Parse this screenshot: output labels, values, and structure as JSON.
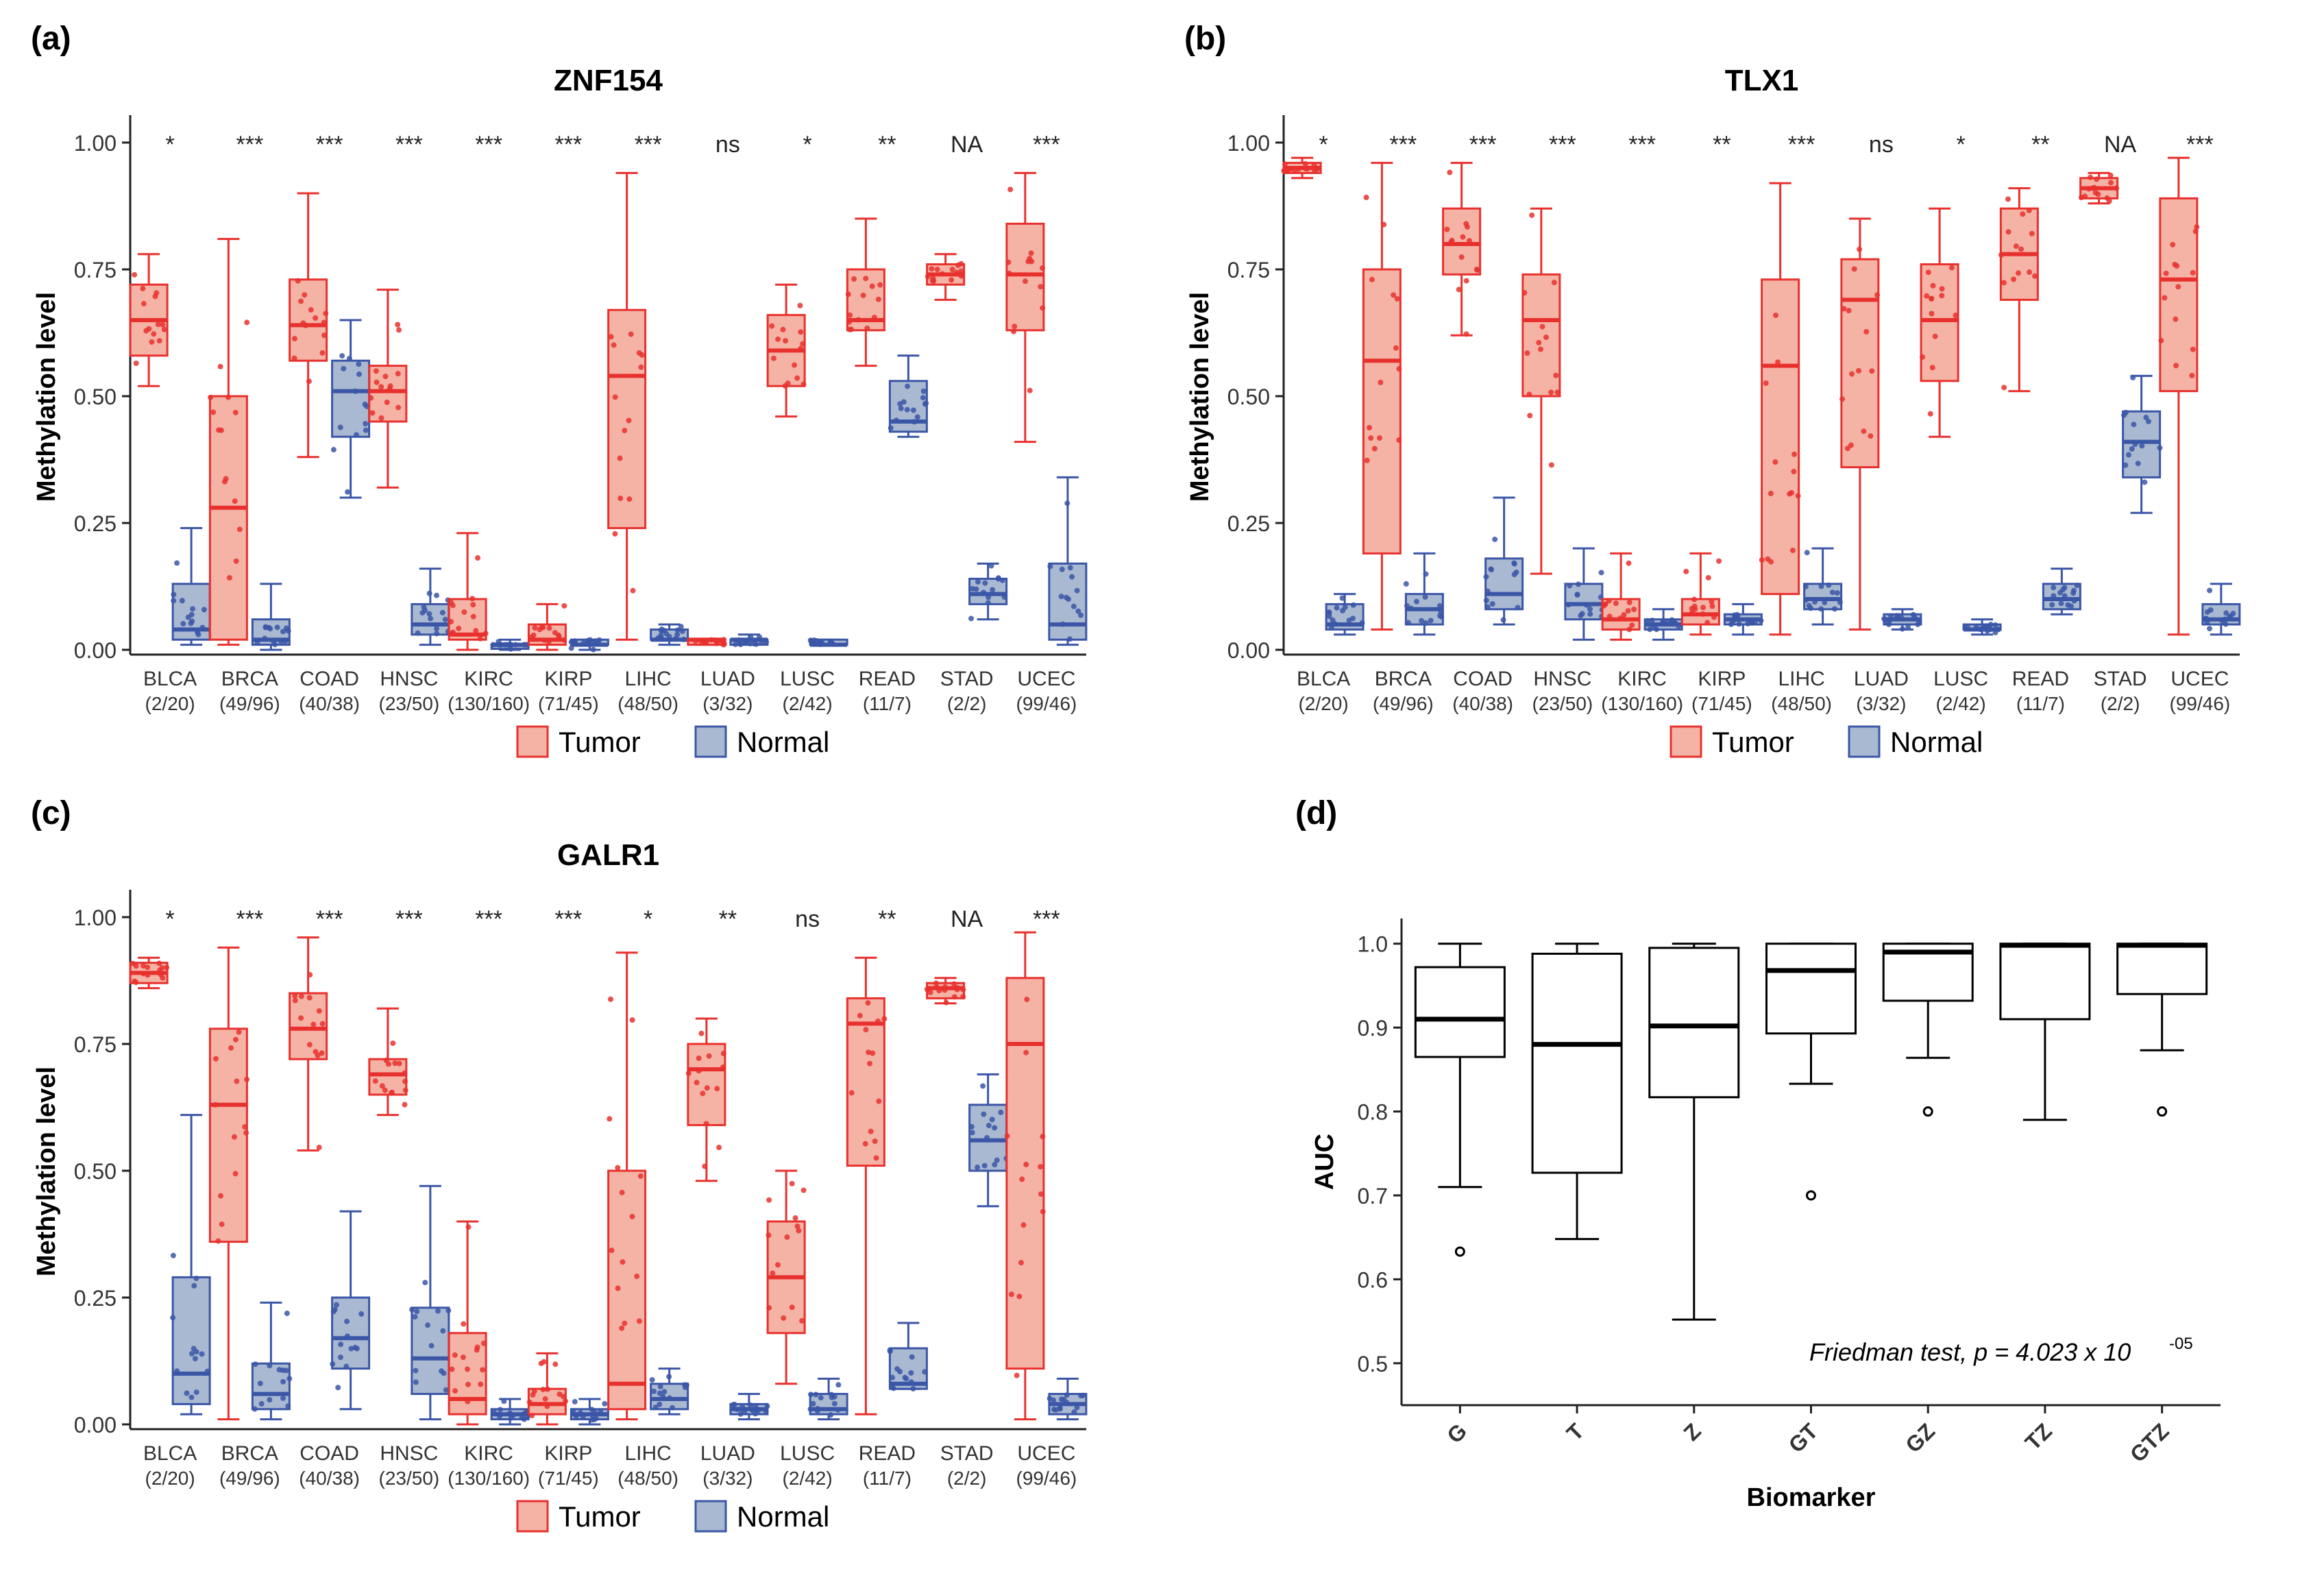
{
  "colors": {
    "tumor": "#e8312e",
    "tumor_fill": "#f5b3a6",
    "normal": "#3b56a7",
    "normal_fill": "#a9b9d1",
    "axis": "#222222"
  },
  "chart_data": [
    {
      "panel": "(a)",
      "title": "ZNF154",
      "type": "boxplot",
      "ylabel": "Methylation level",
      "ylim": [
        0,
        1
      ],
      "yticks": [
        "0.00",
        "0.25",
        "0.50",
        "0.75",
        "1.00"
      ],
      "legend": [
        "Tumor",
        "Normal"
      ],
      "categories": [
        {
          "name": "BLCA",
          "counts": "(2/20)",
          "sig": "*",
          "tumor": [
            0.52,
            0.58,
            0.65,
            0.72,
            0.78
          ],
          "normal": [
            0.01,
            0.02,
            0.04,
            0.13,
            0.24
          ]
        },
        {
          "name": "BRCA",
          "counts": "(49/96)",
          "sig": "***",
          "tumor": [
            0.01,
            0.02,
            0.28,
            0.5,
            0.81
          ],
          "normal": [
            0.0,
            0.01,
            0.02,
            0.06,
            0.13
          ]
        },
        {
          "name": "COAD",
          "counts": "(40/38)",
          "sig": "***",
          "tumor": [
            0.38,
            0.57,
            0.64,
            0.73,
            0.9
          ],
          "normal": [
            0.3,
            0.42,
            0.51,
            0.57,
            0.65
          ]
        },
        {
          "name": "HNSC",
          "counts": "(23/50)",
          "sig": "***",
          "tumor": [
            0.32,
            0.45,
            0.51,
            0.56,
            0.71
          ],
          "normal": [
            0.01,
            0.03,
            0.05,
            0.09,
            0.16
          ]
        },
        {
          "name": "KIRC",
          "counts": "(130/160)",
          "sig": "***",
          "tumor": [
            0.0,
            0.02,
            0.03,
            0.1,
            0.23
          ],
          "normal": [
            0.0,
            0.01,
            0.01,
            0.01,
            0.02
          ]
        },
        {
          "name": "KIRP",
          "counts": "(71/45)",
          "sig": "***",
          "tumor": [
            0.0,
            0.01,
            0.02,
            0.05,
            0.09
          ],
          "normal": [
            0.0,
            0.01,
            0.01,
            0.02,
            0.02
          ]
        },
        {
          "name": "LIHC",
          "counts": "(48/50)",
          "sig": "***",
          "tumor": [
            0.02,
            0.24,
            0.54,
            0.67,
            0.94
          ],
          "normal": [
            0.01,
            0.02,
            0.02,
            0.04,
            0.05
          ]
        },
        {
          "name": "LUAD",
          "counts": "(3/32)",
          "sig": "ns",
          "tumor": [
            0.01,
            0.01,
            0.02,
            0.02,
            0.02
          ],
          "normal": [
            0.01,
            0.01,
            0.02,
            0.02,
            0.03
          ]
        },
        {
          "name": "LUSC",
          "counts": "(2/42)",
          "sig": "*",
          "tumor": [
            0.46,
            0.52,
            0.59,
            0.66,
            0.72
          ],
          "normal": [
            0.01,
            0.01,
            0.01,
            0.02,
            0.02
          ]
        },
        {
          "name": "READ",
          "counts": "(11/7)",
          "sig": "**",
          "tumor": [
            0.56,
            0.63,
            0.65,
            0.75,
            0.85
          ],
          "normal": [
            0.42,
            0.43,
            0.45,
            0.53,
            0.58
          ]
        },
        {
          "name": "STAD",
          "counts": "(2/2)",
          "sig": "NA",
          "tumor": [
            0.69,
            0.72,
            0.74,
            0.76,
            0.78
          ],
          "normal": [
            0.06,
            0.09,
            0.11,
            0.14,
            0.17
          ]
        },
        {
          "name": "UCEC",
          "counts": "(99/46)",
          "sig": "***",
          "tumor": [
            0.41,
            0.63,
            0.74,
            0.84,
            0.94
          ],
          "normal": [
            0.01,
            0.02,
            0.05,
            0.17,
            0.34
          ]
        }
      ]
    },
    {
      "panel": "(b)",
      "title": "TLX1",
      "type": "boxplot",
      "ylabel": "Methylation level",
      "ylim": [
        0,
        1
      ],
      "yticks": [
        "0.00",
        "0.25",
        "0.50",
        "0.75",
        "1.00"
      ],
      "legend": [
        "Tumor",
        "Normal"
      ],
      "categories": [
        {
          "name": "BLCA",
          "counts": "(2/20)",
          "sig": "*",
          "tumor": [
            0.93,
            0.94,
            0.95,
            0.96,
            0.97
          ],
          "normal": [
            0.03,
            0.04,
            0.05,
            0.09,
            0.11
          ]
        },
        {
          "name": "BRCA",
          "counts": "(49/96)",
          "sig": "***",
          "tumor": [
            0.04,
            0.19,
            0.57,
            0.75,
            0.96
          ],
          "normal": [
            0.03,
            0.05,
            0.08,
            0.11,
            0.19
          ]
        },
        {
          "name": "COAD",
          "counts": "(40/38)",
          "sig": "***",
          "tumor": [
            0.62,
            0.74,
            0.8,
            0.87,
            0.96
          ],
          "normal": [
            0.05,
            0.08,
            0.11,
            0.18,
            0.3
          ]
        },
        {
          "name": "HNSC",
          "counts": "(23/50)",
          "sig": "***",
          "tumor": [
            0.15,
            0.5,
            0.65,
            0.74,
            0.87
          ],
          "normal": [
            0.02,
            0.06,
            0.09,
            0.13,
            0.2
          ]
        },
        {
          "name": "KIRC",
          "counts": "(130/160)",
          "sig": "***",
          "tumor": [
            0.02,
            0.04,
            0.06,
            0.1,
            0.19
          ],
          "normal": [
            0.02,
            0.04,
            0.05,
            0.06,
            0.08
          ]
        },
        {
          "name": "KIRP",
          "counts": "(71/45)",
          "sig": "**",
          "tumor": [
            0.03,
            0.05,
            0.07,
            0.1,
            0.19
          ],
          "normal": [
            0.03,
            0.05,
            0.06,
            0.07,
            0.09
          ]
        },
        {
          "name": "LIHC",
          "counts": "(48/50)",
          "sig": "***",
          "tumor": [
            0.03,
            0.11,
            0.56,
            0.73,
            0.92
          ],
          "normal": [
            0.05,
            0.08,
            0.1,
            0.13,
            0.2
          ]
        },
        {
          "name": "LUAD",
          "counts": "(3/32)",
          "sig": "ns",
          "tumor": [
            0.04,
            0.36,
            0.69,
            0.77,
            0.85
          ],
          "normal": [
            0.04,
            0.05,
            0.06,
            0.07,
            0.08
          ]
        },
        {
          "name": "LUSC",
          "counts": "(2/42)",
          "sig": "*",
          "tumor": [
            0.42,
            0.53,
            0.65,
            0.76,
            0.87
          ],
          "normal": [
            0.03,
            0.04,
            0.04,
            0.05,
            0.06
          ]
        },
        {
          "name": "READ",
          "counts": "(11/7)",
          "sig": "**",
          "tumor": [
            0.51,
            0.69,
            0.78,
            0.87,
            0.91
          ],
          "normal": [
            0.07,
            0.08,
            0.1,
            0.13,
            0.16
          ]
        },
        {
          "name": "STAD",
          "counts": "(2/2)",
          "sig": "NA",
          "tumor": [
            0.88,
            0.89,
            0.91,
            0.93,
            0.94
          ],
          "normal": [
            0.27,
            0.34,
            0.41,
            0.47,
            0.54
          ]
        },
        {
          "name": "UCEC",
          "counts": "(99/46)",
          "sig": "***",
          "tumor": [
            0.03,
            0.51,
            0.73,
            0.89,
            0.97
          ],
          "normal": [
            0.03,
            0.05,
            0.06,
            0.09,
            0.13
          ]
        }
      ]
    },
    {
      "panel": "(c)",
      "title": "GALR1",
      "type": "boxplot",
      "ylabel": "Methylation level",
      "ylim": [
        0,
        1
      ],
      "yticks": [
        "0.00",
        "0.25",
        "0.50",
        "0.75",
        "1.00"
      ],
      "legend": [
        "Tumor",
        "Normal"
      ],
      "categories": [
        {
          "name": "BLCA",
          "counts": "(2/20)",
          "sig": "*",
          "tumor": [
            0.86,
            0.87,
            0.89,
            0.91,
            0.92
          ],
          "normal": [
            0.02,
            0.04,
            0.1,
            0.29,
            0.61
          ]
        },
        {
          "name": "BRCA",
          "counts": "(49/96)",
          "sig": "***",
          "tumor": [
            0.01,
            0.36,
            0.63,
            0.78,
            0.94
          ],
          "normal": [
            0.01,
            0.03,
            0.06,
            0.12,
            0.24
          ]
        },
        {
          "name": "COAD",
          "counts": "(40/38)",
          "sig": "***",
          "tumor": [
            0.54,
            0.72,
            0.78,
            0.85,
            0.96
          ],
          "normal": [
            0.03,
            0.11,
            0.17,
            0.25,
            0.42
          ]
        },
        {
          "name": "HNSC",
          "counts": "(23/50)",
          "sig": "***",
          "tumor": [
            0.61,
            0.65,
            0.69,
            0.72,
            0.82
          ],
          "normal": [
            0.01,
            0.06,
            0.13,
            0.23,
            0.47
          ]
        },
        {
          "name": "KIRC",
          "counts": "(130/160)",
          "sig": "***",
          "tumor": [
            0.0,
            0.02,
            0.05,
            0.18,
            0.4
          ],
          "normal": [
            0.0,
            0.01,
            0.02,
            0.03,
            0.05
          ]
        },
        {
          "name": "KIRP",
          "counts": "(71/45)",
          "sig": "***",
          "tumor": [
            0.0,
            0.02,
            0.04,
            0.07,
            0.14
          ],
          "normal": [
            0.0,
            0.01,
            0.02,
            0.03,
            0.05
          ]
        },
        {
          "name": "LIHC",
          "counts": "(48/50)",
          "sig": "*",
          "tumor": [
            0.01,
            0.03,
            0.08,
            0.5,
            0.93
          ],
          "normal": [
            0.02,
            0.03,
            0.05,
            0.08,
            0.11
          ]
        },
        {
          "name": "LUAD",
          "counts": "(3/32)",
          "sig": "**",
          "tumor": [
            0.48,
            0.59,
            0.7,
            0.75,
            0.8
          ],
          "normal": [
            0.01,
            0.02,
            0.03,
            0.04,
            0.06
          ]
        },
        {
          "name": "LUSC",
          "counts": "(2/42)",
          "sig": "ns",
          "tumor": [
            0.08,
            0.18,
            0.29,
            0.4,
            0.5
          ],
          "normal": [
            0.01,
            0.02,
            0.03,
            0.06,
            0.09
          ]
        },
        {
          "name": "READ",
          "counts": "(11/7)",
          "sig": "**",
          "tumor": [
            0.02,
            0.51,
            0.79,
            0.84,
            0.92
          ],
          "normal": [
            0.07,
            0.07,
            0.08,
            0.15,
            0.2
          ]
        },
        {
          "name": "STAD",
          "counts": "(2/2)",
          "sig": "NA",
          "tumor": [
            0.83,
            0.84,
            0.86,
            0.87,
            0.88
          ],
          "normal": [
            0.43,
            0.5,
            0.56,
            0.63,
            0.69
          ]
        },
        {
          "name": "UCEC",
          "counts": "(99/46)",
          "sig": "***",
          "tumor": [
            0.01,
            0.11,
            0.75,
            0.88,
            0.97
          ],
          "normal": [
            0.01,
            0.02,
            0.04,
            0.06,
            0.09
          ]
        }
      ]
    },
    {
      "panel": "(d)",
      "title": "",
      "type": "boxplot",
      "xlabel": "Biomarker",
      "ylabel": "AUC",
      "ylim": [
        0.45,
        1.03
      ],
      "yticks": [
        "0.5",
        "0.6",
        "0.7",
        "0.8",
        "0.9",
        "1.0"
      ],
      "annotation": "Friedman test, p = 4.023 x 10",
      "annotation_exp": "-05",
      "categories": [
        {
          "name": "G",
          "min": 0.71,
          "q1": 0.865,
          "median": 0.91,
          "q3": 0.972,
          "max": 1.0,
          "outliers": [
            0.633
          ]
        },
        {
          "name": "T",
          "min": 0.648,
          "q1": 0.727,
          "median": 0.88,
          "q3": 0.988,
          "max": 1.0,
          "outliers": []
        },
        {
          "name": "Z",
          "min": 0.552,
          "q1": 0.817,
          "median": 0.902,
          "q3": 0.995,
          "max": 1.0,
          "outliers": []
        },
        {
          "name": "GT",
          "min": 0.833,
          "q1": 0.893,
          "median": 0.968,
          "q3": 1.0,
          "max": 1.0,
          "outliers": [
            0.7
          ]
        },
        {
          "name": "GZ",
          "min": 0.864,
          "q1": 0.932,
          "median": 0.99,
          "q3": 1.0,
          "max": 1.0,
          "outliers": [
            0.8
          ]
        },
        {
          "name": "TZ",
          "min": 0.79,
          "q1": 0.91,
          "median": 0.998,
          "q3": 1.0,
          "max": 1.0,
          "outliers": []
        },
        {
          "name": "GTZ",
          "min": 0.873,
          "q1": 0.94,
          "median": 0.998,
          "q3": 1.0,
          "max": 1.0,
          "outliers": [
            0.8
          ]
        }
      ]
    }
  ]
}
